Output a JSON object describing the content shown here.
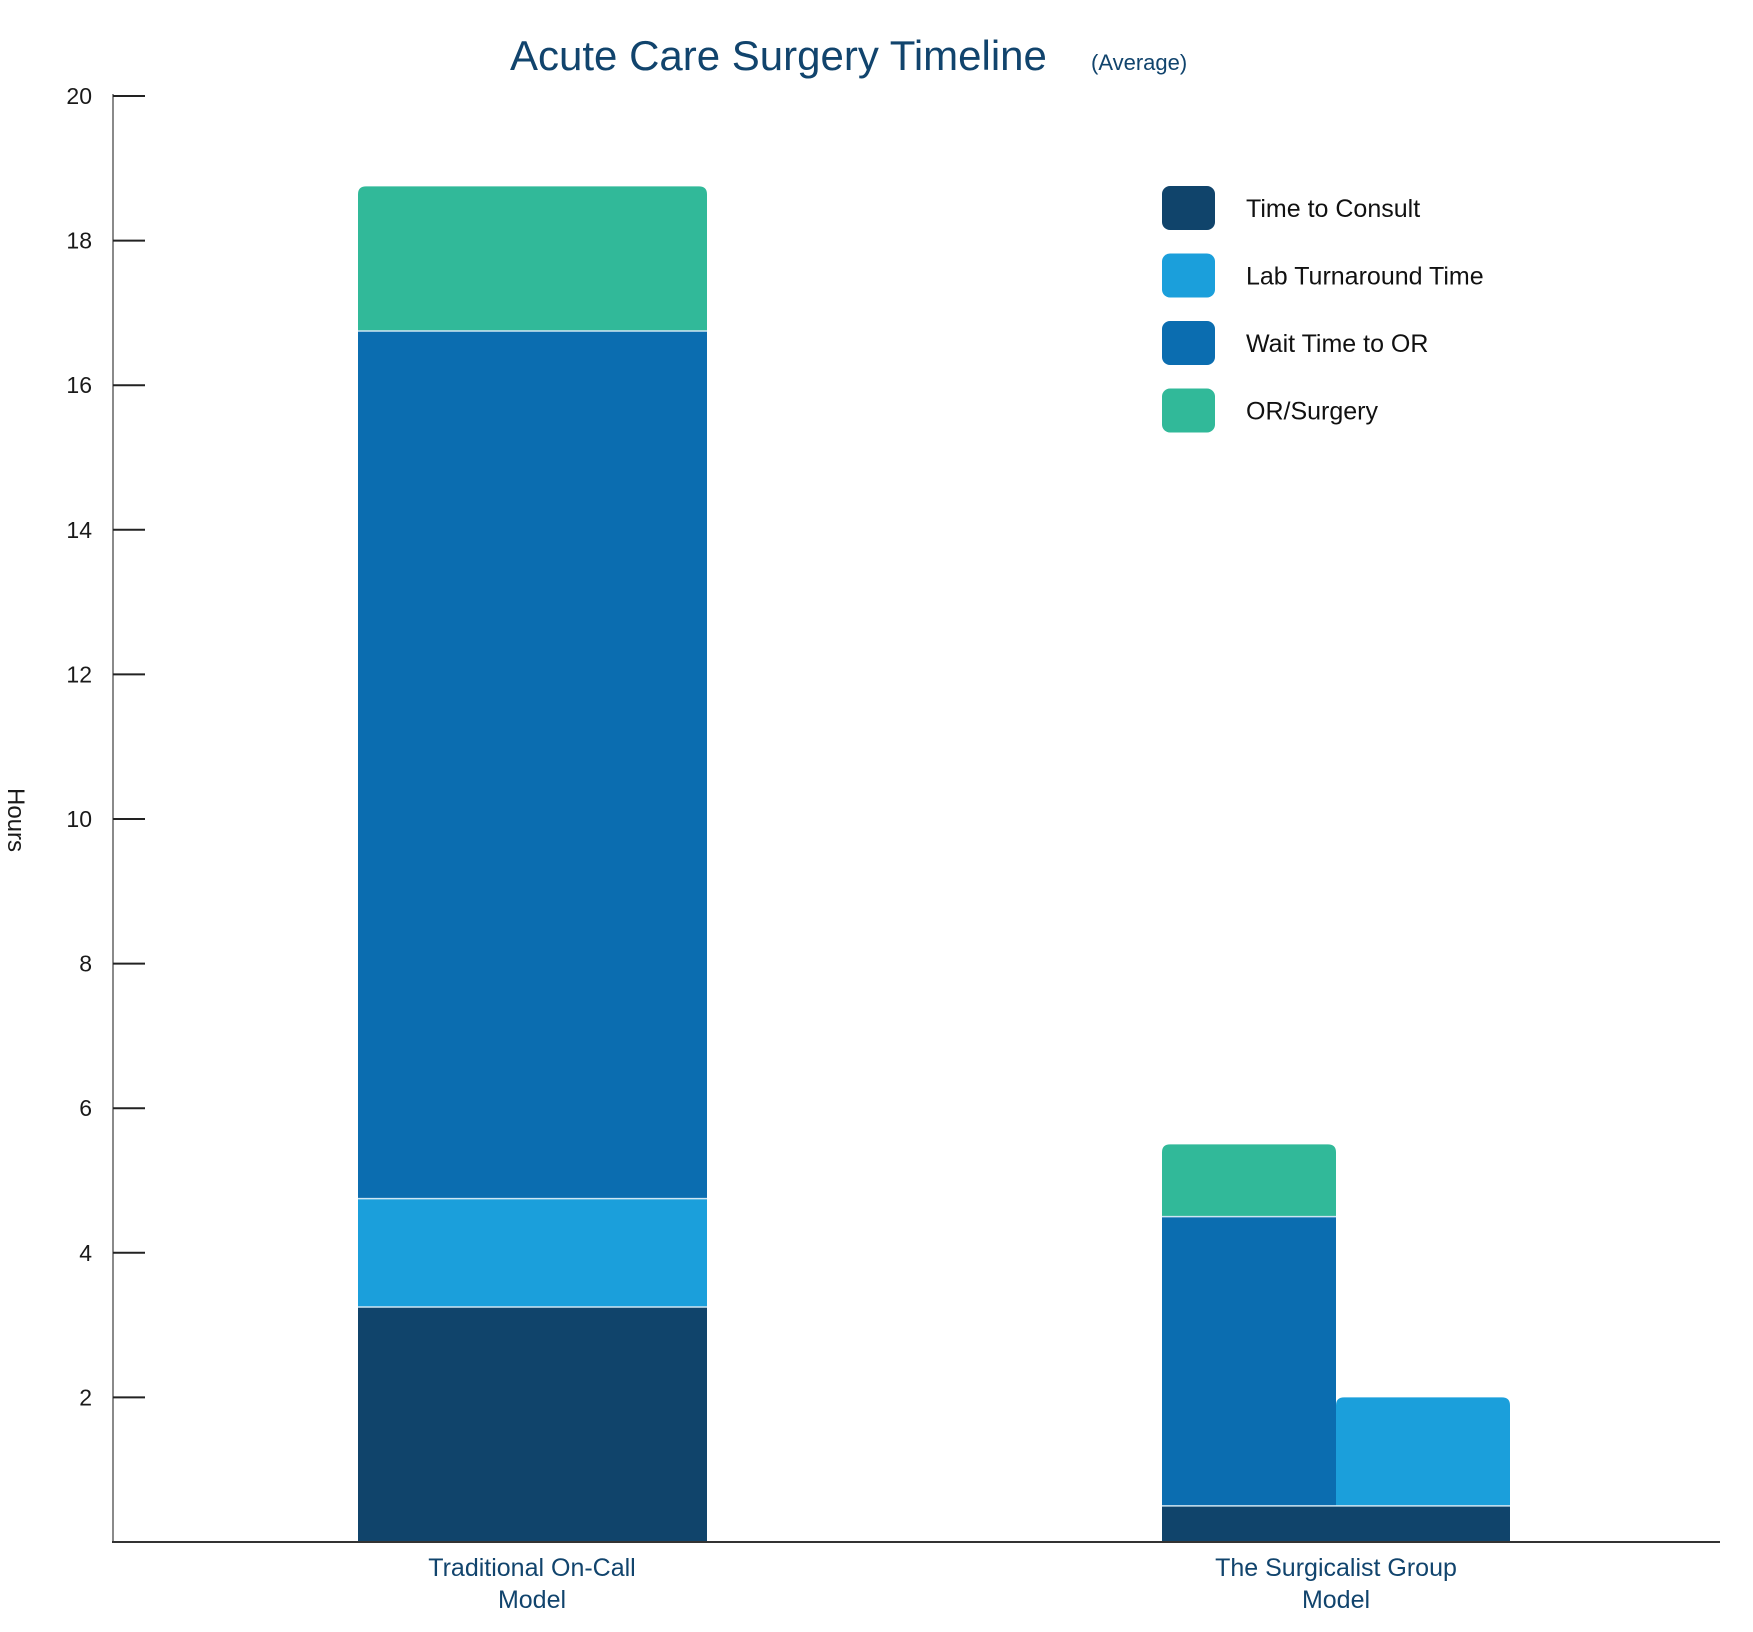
{
  "chart_data": {
    "type": "bar",
    "stacked": true,
    "title": "Acute Care Surgery Timeline",
    "subtitle": "(Average)",
    "xlabel": "",
    "ylabel": "Hours",
    "ylim": [
      0,
      20
    ],
    "yticks": [
      2,
      4,
      6,
      8,
      10,
      12,
      14,
      16,
      18,
      20
    ],
    "grid": false,
    "legend_position": "top-right",
    "categories": [
      {
        "label_lines": [
          "Traditional On-Call",
          "Model"
        ]
      },
      {
        "label_lines": [
          "The Surgicalist Group",
          "Model"
        ]
      }
    ],
    "series": [
      {
        "name": "Time to Consult",
        "color": "#10446b",
        "values": [
          3.25,
          0.5
        ]
      },
      {
        "name": "Lab Turnaround Time",
        "color": "#1b9fdb",
        "values": [
          1.5,
          1.5
        ]
      },
      {
        "name": "Wait Time to OR",
        "color": "#0b6db0",
        "values": [
          12.0,
          4.0
        ]
      },
      {
        "name": "OR/Surgery",
        "color": "#31b999",
        "values": [
          2.0,
          1.0
        ]
      }
    ],
    "notes": "In the Surgicalist Group Model, Lab Turnaround Time (0.5-2.0 h) runs in parallel, drawn beside the Wait Time to OR and OR/Surgery segments atop the shared Time to Consult base."
  }
}
